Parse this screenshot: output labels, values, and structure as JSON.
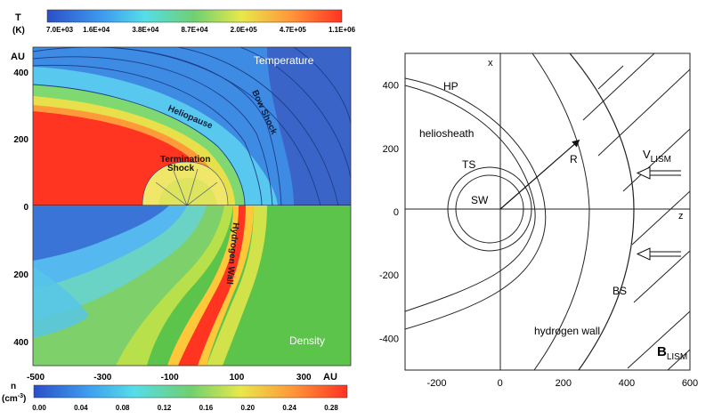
{
  "left_panel": {
    "top_colorbar": {
      "unit_symbol": "T",
      "unit": "(K)",
      "ticks": [
        "7.0E+03",
        "1.6E+04",
        "3.8E+04",
        "8.7E+04",
        "2.0E+05",
        "4.7E+05",
        "1.1E+06"
      ]
    },
    "bottom_colorbar": {
      "unit_symbol": "n",
      "unit": "(cm",
      "unit_exp": "-3",
      "unit_close": ")",
      "ticks": [
        "0.00",
        "0.04",
        "0.08",
        "0.12",
        "0.16",
        "0.20",
        "0.24",
        "0.28"
      ]
    },
    "y_unit": "AU",
    "x_unit": "AU",
    "y_ticks_top": [
      "400",
      "200",
      "0"
    ],
    "y_ticks_bottom": [
      "200",
      "400"
    ],
    "x_ticks": [
      "-500",
      "-300",
      "-100",
      "100",
      "300"
    ],
    "labels": {
      "temperature": "Temperature",
      "density": "Density",
      "heliopause": "Heliopause",
      "bow_shock": "Bow Shock",
      "termination_1": "Termination",
      "termination_2": "Shock",
      "hydrogen_wall": "Hydrogen Wall"
    }
  },
  "right_panel": {
    "x_ticks": [
      "-200",
      "0",
      "200",
      "400",
      "600"
    ],
    "y_ticks": [
      "400",
      "200",
      "0",
      "-200",
      "-400"
    ],
    "axis_x_label": "x",
    "axis_z_label": "z",
    "labels": {
      "hp": "HP",
      "heliosheath": "heliosheath",
      "ts": "TS",
      "sw": "SW",
      "r": "R",
      "v": "V",
      "v_sub": "LISM",
      "bs": "BS",
      "hydrogen_wall": "hydrogen wall",
      "b": "B",
      "b_sub": "LISM"
    }
  }
}
